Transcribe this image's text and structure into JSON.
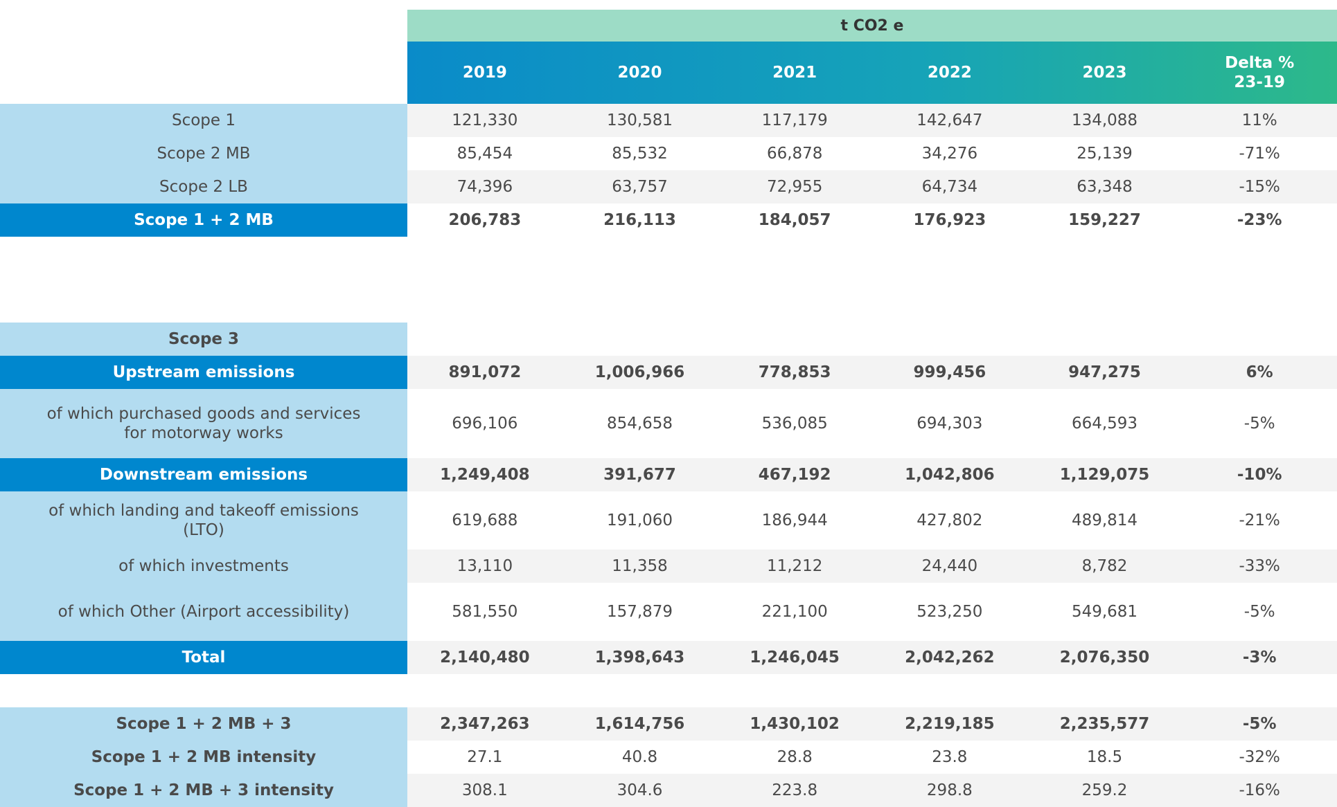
{
  "header": {
    "unit": "t CO2 e",
    "columns": [
      "2019",
      "2020",
      "2021",
      "2022",
      "2023",
      "Delta %\n23-19"
    ]
  },
  "rows": [
    {
      "label": "Scope 1",
      "values": [
        "121,330",
        "130,581",
        "117,179",
        "142,647",
        "134,088",
        "11%"
      ]
    },
    {
      "label": "Scope 2 MB",
      "values": [
        "85,454",
        "85,532",
        "66,878",
        "34,276",
        "25,139",
        "-71%"
      ]
    },
    {
      "label": "Scope 2 LB",
      "values": [
        "74,396",
        "63,757",
        "72,955",
        "64,734",
        "63,348",
        "-15%"
      ]
    },
    {
      "label": "Scope 1 + 2 MB",
      "values": [
        "206,783",
        "216,113",
        "184,057",
        "176,923",
        "159,227",
        "-23%"
      ]
    },
    {
      "label": "Scope 3",
      "values": [
        "",
        "",
        "",
        "",
        "",
        ""
      ]
    },
    {
      "label": "Upstream emissions",
      "values": [
        "891,072",
        "1,006,966",
        "778,853",
        "999,456",
        "947,275",
        "6%"
      ]
    },
    {
      "label": "of which purchased goods and services\nfor motorway works",
      "values": [
        "696,106",
        "854,658",
        "536,085",
        "694,303",
        "664,593",
        "-5%"
      ]
    },
    {
      "label": "Downstream  emissions",
      "values": [
        "1,249,408",
        "391,677",
        "467,192",
        "1,042,806",
        "1,129,075",
        "-10%"
      ]
    },
    {
      "label": "of which landing and takeoff emissions\n(LTO)",
      "values": [
        "619,688",
        "191,060",
        "186,944",
        "427,802",
        "489,814",
        "-21%"
      ]
    },
    {
      "label": "of which investments",
      "values": [
        "13,110",
        "11,358",
        "11,212",
        "24,440",
        "8,782",
        "-33%"
      ]
    },
    {
      "label": "of which Other (Airport accessibility)",
      "values": [
        "581,550",
        "157,879",
        "221,100",
        "523,250",
        "549,681",
        "-5%"
      ]
    },
    {
      "label": "Total",
      "values": [
        "2,140,480",
        "1,398,643",
        "1,246,045",
        "2,042,262",
        "2,076,350",
        "-3%"
      ]
    },
    {
      "label": "Scope 1 + 2 MB + 3",
      "values": [
        "2,347,263",
        "1,614,756",
        "1,430,102",
        "2,219,185",
        "2,235,577",
        "-5%"
      ]
    },
    {
      "label": "Scope 1 + 2 MB intensity",
      "values": [
        "27.1",
        "40.8",
        "28.8",
        "23.8",
        "18.5",
        "-32%"
      ]
    },
    {
      "label": "Scope 1 + 2 MB + 3 intensity",
      "values": [
        "308.1",
        "304.6",
        "223.8",
        "298.8",
        "259.2",
        "-16%"
      ]
    }
  ]
}
